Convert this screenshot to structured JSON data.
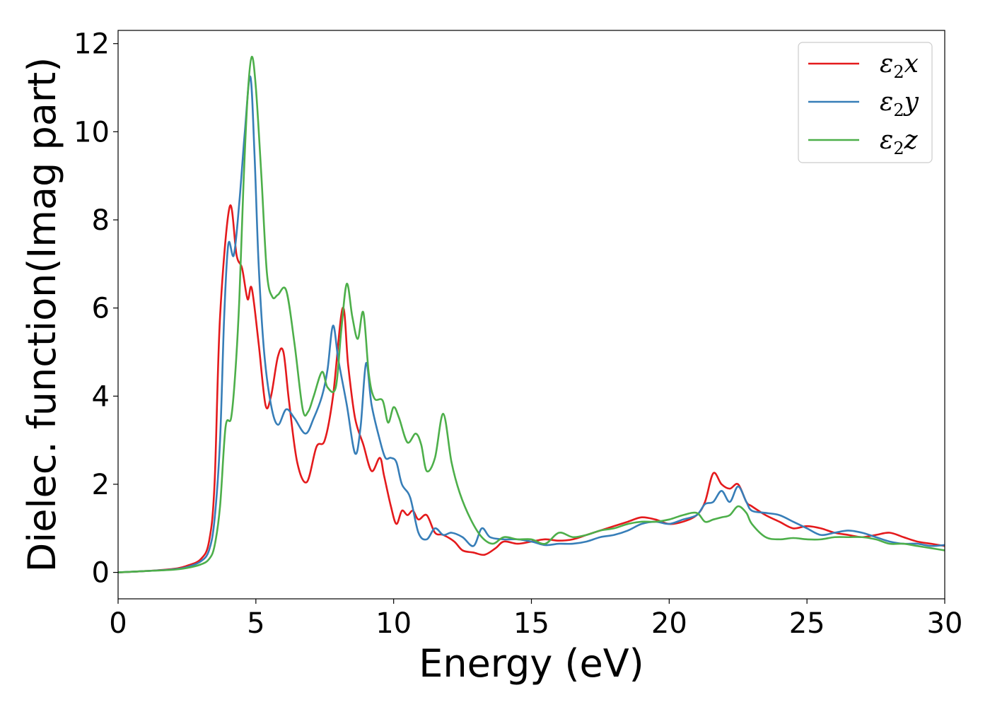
{
  "chart_data": {
    "type": "line",
    "xlabel": "Energy (eV)",
    "ylabel": "Dielec. function(Imag part)",
    "xlim": [
      0,
      30
    ],
    "ylim": [
      -0.6,
      12.3
    ],
    "xticks": [
      0,
      5,
      10,
      15,
      20,
      25,
      30
    ],
    "yticks": [
      0,
      2,
      4,
      6,
      8,
      10,
      12
    ],
    "grid": false,
    "legend_position": "top-right",
    "series": [
      {
        "name": "ε2x",
        "legend_base": "ε",
        "legend_sub": "2",
        "legend_tail": "x",
        "color": "#e41a1c",
        "x": [
          0,
          1,
          2,
          2.5,
          3,
          3.3,
          3.5,
          3.7,
          4.05,
          4.3,
          4.5,
          4.7,
          4.85,
          5.1,
          5.35,
          5.55,
          5.8,
          6,
          6.2,
          6.5,
          6.85,
          7.2,
          7.5,
          7.8,
          8.15,
          8.35,
          8.6,
          8.9,
          9.2,
          9.5,
          9.65,
          9.9,
          10.1,
          10.3,
          10.5,
          10.7,
          10.9,
          11.2,
          11.5,
          11.8,
          12.2,
          12.5,
          12.9,
          13.3,
          13.7,
          14,
          14.5,
          15,
          15.5,
          16,
          16.5,
          17,
          17.5,
          18,
          18.5,
          19,
          19.5,
          20,
          20.5,
          21,
          21.3,
          21.6,
          21.9,
          22.2,
          22.5,
          22.8,
          23,
          23.5,
          24,
          24.5,
          25,
          25.5,
          26,
          26.5,
          27,
          27.5,
          28,
          28.5,
          29,
          29.5,
          30
        ],
        "y": [
          0,
          0.03,
          0.08,
          0.15,
          0.3,
          0.7,
          2.0,
          5.8,
          8.3,
          7.2,
          6.9,
          6.2,
          6.45,
          5.2,
          3.8,
          4.0,
          4.9,
          5.0,
          3.9,
          2.5,
          2.05,
          2.85,
          3.0,
          4.0,
          6.0,
          4.7,
          3.5,
          2.9,
          2.3,
          2.6,
          2.2,
          1.5,
          1.1,
          1.4,
          1.3,
          1.4,
          1.2,
          1.3,
          0.9,
          0.85,
          0.7,
          0.5,
          0.45,
          0.4,
          0.55,
          0.7,
          0.65,
          0.7,
          0.75,
          0.72,
          0.75,
          0.85,
          0.95,
          1.05,
          1.15,
          1.25,
          1.2,
          1.1,
          1.15,
          1.3,
          1.6,
          2.25,
          2.0,
          1.9,
          2.0,
          1.6,
          1.5,
          1.3,
          1.15,
          1.0,
          1.05,
          1.0,
          0.9,
          0.85,
          0.8,
          0.85,
          0.9,
          0.8,
          0.7,
          0.65,
          0.6
        ]
      },
      {
        "name": "ε2y",
        "legend_base": "ε",
        "legend_sub": "2",
        "legend_tail": "y",
        "color": "#377eb8",
        "x": [
          0,
          1,
          2,
          2.5,
          3,
          3.3,
          3.5,
          3.7,
          3.85,
          4.0,
          4.2,
          4.4,
          4.6,
          4.8,
          4.95,
          5.1,
          5.3,
          5.55,
          5.8,
          6.1,
          6.4,
          6.8,
          7.1,
          7.4,
          7.6,
          7.8,
          8.0,
          8.3,
          8.6,
          8.8,
          9.0,
          9.2,
          9.5,
          9.7,
          9.9,
          10.1,
          10.3,
          10.6,
          10.9,
          11.2,
          11.5,
          11.8,
          12.1,
          12.5,
          12.9,
          13.2,
          13.5,
          14,
          14.5,
          15,
          15.5,
          16,
          16.5,
          17,
          17.5,
          18,
          18.5,
          19,
          19.5,
          20,
          20.5,
          21,
          21.3,
          21.6,
          21.9,
          22.2,
          22.5,
          22.8,
          23,
          23.5,
          24,
          24.5,
          25,
          25.5,
          26,
          26.5,
          27,
          27.5,
          28,
          28.5,
          29,
          29.5,
          30
        ],
        "y": [
          0,
          0.03,
          0.07,
          0.12,
          0.25,
          0.5,
          1.2,
          3.0,
          5.8,
          7.45,
          7.2,
          8.4,
          10.0,
          11.25,
          9.5,
          7.0,
          5.0,
          3.8,
          3.35,
          3.7,
          3.5,
          3.15,
          3.5,
          4.0,
          4.6,
          5.6,
          4.8,
          3.8,
          2.7,
          3.3,
          4.75,
          3.8,
          3.0,
          2.6,
          2.6,
          2.5,
          2.0,
          1.7,
          0.9,
          0.75,
          1.0,
          0.85,
          0.9,
          0.8,
          0.6,
          1.0,
          0.8,
          0.75,
          0.75,
          0.7,
          0.62,
          0.65,
          0.65,
          0.7,
          0.8,
          0.85,
          0.95,
          1.1,
          1.15,
          1.1,
          1.2,
          1.3,
          1.55,
          1.6,
          1.85,
          1.6,
          1.95,
          1.6,
          1.4,
          1.35,
          1.3,
          1.15,
          1.0,
          0.85,
          0.9,
          0.95,
          0.9,
          0.8,
          0.7,
          0.65,
          0.65,
          0.6,
          0.62
        ]
      },
      {
        "name": "ε2z",
        "legend_base": "ε",
        "legend_sub": "2",
        "legend_tail": "z",
        "color": "#4daf4a",
        "x": [
          0,
          1,
          2,
          2.5,
          3,
          3.3,
          3.5,
          3.7,
          3.9,
          4.1,
          4.25,
          4.4,
          4.55,
          4.7,
          4.85,
          5.0,
          5.2,
          5.4,
          5.6,
          5.8,
          6.1,
          6.4,
          6.7,
          6.9,
          7.1,
          7.4,
          7.6,
          7.9,
          8.1,
          8.3,
          8.5,
          8.7,
          8.9,
          9.1,
          9.3,
          9.6,
          9.8,
          10.0,
          10.2,
          10.5,
          10.8,
          11.0,
          11.2,
          11.5,
          11.8,
          12.1,
          12.4,
          12.8,
          13.2,
          13.6,
          14,
          14.5,
          15,
          15.5,
          16,
          16.5,
          17,
          17.5,
          18,
          18.5,
          19,
          19.5,
          20,
          20.5,
          21,
          21.3,
          21.6,
          21.9,
          22.2,
          22.5,
          22.8,
          23.0,
          23.5,
          24,
          24.5,
          25,
          25.5,
          26,
          26.5,
          27,
          27.5,
          28,
          28.5,
          29,
          29.5,
          30
        ],
        "y": [
          0,
          0.03,
          0.06,
          0.1,
          0.18,
          0.3,
          0.6,
          1.5,
          3.3,
          3.5,
          4.5,
          6.2,
          8.8,
          10.8,
          11.7,
          11.0,
          9.0,
          6.8,
          6.25,
          6.3,
          6.4,
          5.2,
          3.7,
          3.65,
          4.0,
          4.55,
          4.2,
          4.2,
          5.5,
          6.55,
          5.8,
          5.3,
          5.9,
          4.5,
          3.95,
          3.9,
          3.4,
          3.75,
          3.5,
          2.95,
          3.15,
          2.9,
          2.3,
          2.6,
          3.6,
          2.5,
          1.8,
          1.2,
          0.8,
          0.65,
          0.8,
          0.75,
          0.75,
          0.65,
          0.9,
          0.8,
          0.85,
          0.95,
          1.0,
          1.1,
          1.15,
          1.15,
          1.2,
          1.3,
          1.35,
          1.15,
          1.2,
          1.25,
          1.3,
          1.5,
          1.35,
          1.1,
          0.8,
          0.75,
          0.78,
          0.75,
          0.75,
          0.8,
          0.8,
          0.8,
          0.75,
          0.65,
          0.65,
          0.6,
          0.55,
          0.5
        ]
      }
    ]
  }
}
